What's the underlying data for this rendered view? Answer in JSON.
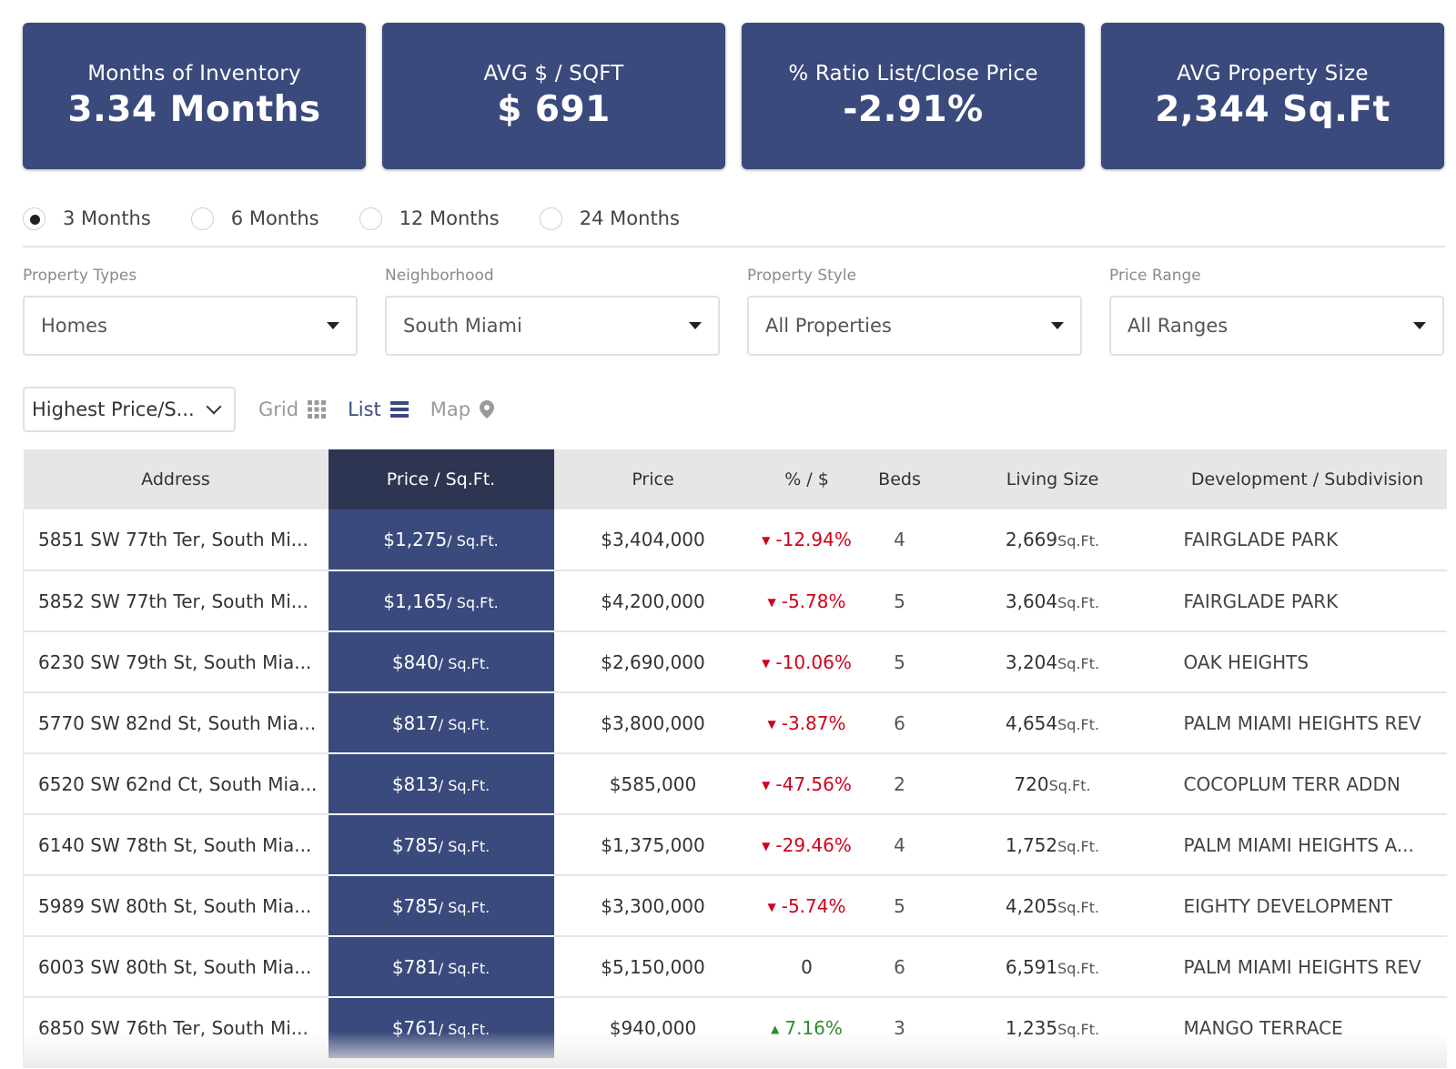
{
  "stats": [
    {
      "label": "Months of Inventory",
      "value": "3.34 Months"
    },
    {
      "label": "AVG $ / SQFT",
      "value": "$ 691"
    },
    {
      "label": "% Ratio List/Close Price",
      "value": "-2.91%"
    },
    {
      "label": "AVG Property Size",
      "value": "2,344 Sq.Ft"
    }
  ],
  "periods": [
    {
      "label": "3 Months",
      "checked": true
    },
    {
      "label": "6 Months",
      "checked": false
    },
    {
      "label": "12 Months",
      "checked": false
    },
    {
      "label": "24 Months",
      "checked": false
    }
  ],
  "filters": [
    {
      "label": "Property Types",
      "value": "Homes"
    },
    {
      "label": "Neighborhood",
      "value": "South Miami"
    },
    {
      "label": "Property Style",
      "value": "All Properties"
    },
    {
      "label": "Price Range",
      "value": "All Ranges"
    }
  ],
  "toolbar": {
    "sort_value": "Highest Price/S...",
    "grid_label": "Grid",
    "list_label": "List",
    "map_label": "Map"
  },
  "table": {
    "headers": {
      "address": "Address",
      "price_sqft": "Price / Sq.Ft.",
      "price": "Price",
      "pct": "% / $",
      "beds": "Beds",
      "living_size": "Living Size",
      "development": "Development / Subdivision"
    },
    "sqft_unit": "/ Sq.Ft.",
    "size_unit": "Sq.Ft.",
    "rows": [
      {
        "address": "5851 SW 77th Ter, South Mi...",
        "price_sqft": "$1,275",
        "price": "$3,404,000",
        "pct": "-12.94%",
        "trend": "down",
        "beds": "4",
        "size": "2,669",
        "development": "FAIRGLADE PARK"
      },
      {
        "address": "5852 SW 77th Ter, South Mi...",
        "price_sqft": "$1,165",
        "price": "$4,200,000",
        "pct": "-5.78%",
        "trend": "down",
        "beds": "5",
        "size": "3,604",
        "development": "FAIRGLADE PARK"
      },
      {
        "address": "6230 SW 79th St, South Mia...",
        "price_sqft": "$840",
        "price": "$2,690,000",
        "pct": "-10.06%",
        "trend": "down",
        "beds": "5",
        "size": "3,204",
        "development": "OAK HEIGHTS"
      },
      {
        "address": "5770 SW 82nd St, South Mia...",
        "price_sqft": "$817",
        "price": "$3,800,000",
        "pct": "-3.87%",
        "trend": "down",
        "beds": "6",
        "size": "4,654",
        "development": "PALM MIAMI HEIGHTS REV"
      },
      {
        "address": "6520 SW 62nd Ct, South Mia...",
        "price_sqft": "$813",
        "price": "$585,000",
        "pct": "-47.56%",
        "trend": "down",
        "beds": "2",
        "size": "720",
        "development": "COCOPLUM TERR ADDN"
      },
      {
        "address": "6140 SW 78th St, South Mia...",
        "price_sqft": "$785",
        "price": "$1,375,000",
        "pct": "-29.46%",
        "trend": "down",
        "beds": "4",
        "size": "1,752",
        "development": "PALM MIAMI HEIGHTS A..."
      },
      {
        "address": "5989 SW 80th St, South Mia...",
        "price_sqft": "$785",
        "price": "$3,300,000",
        "pct": "-5.74%",
        "trend": "down",
        "beds": "5",
        "size": "4,205",
        "development": "EIGHTY DEVELOPMENT"
      },
      {
        "address": "6003 SW 80th St, South Mia...",
        "price_sqft": "$781",
        "price": "$5,150,000",
        "pct": "0",
        "trend": "none",
        "beds": "6",
        "size": "6,591",
        "development": "PALM MIAMI HEIGHTS REV"
      },
      {
        "address": "6850 SW 76th Ter, South Mi...",
        "price_sqft": "$761",
        "price": "$940,000",
        "pct": "7.16%",
        "trend": "up",
        "beds": "3",
        "size": "1,235",
        "development": "MANGO TERRACE"
      }
    ]
  },
  "colors": {
    "card_bg": "#3b4a7c",
    "header_active": "#2d3552",
    "negative": "#d0021b",
    "positive": "#2e8b2e"
  }
}
